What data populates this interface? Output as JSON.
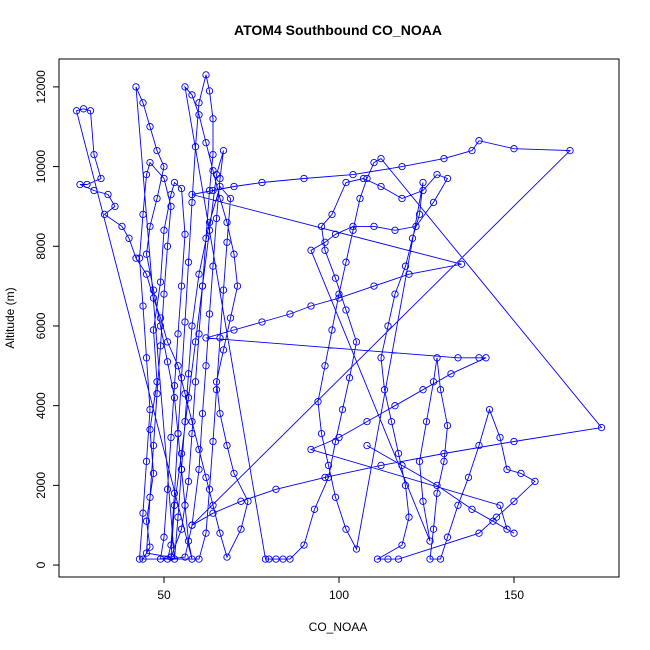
{
  "chart_data": {
    "type": "line",
    "title": "ATOM4 Southbound CO_NOAA",
    "xlabel": "CO_NOAA",
    "ylabel": "Altitude (m)",
    "xlim": [
      20,
      180
    ],
    "ylim": [
      -300,
      12700
    ],
    "x_ticks": [
      50,
      100,
      150
    ],
    "y_ticks": [
      0,
      2000,
      4000,
      6000,
      8000,
      10000,
      12000
    ],
    "marker": "open-circle",
    "line_color": "#0000ff",
    "grid": false,
    "series": [
      {
        "name": "",
        "points": [
          [
            44,
            150
          ],
          [
            46,
            450
          ],
          [
            45,
            1100
          ],
          [
            47,
            2300
          ],
          [
            46,
            3400
          ],
          [
            48,
            4600
          ],
          [
            47,
            5900
          ],
          [
            49,
            7100
          ],
          [
            50,
            8400
          ],
          [
            52,
            9300
          ],
          [
            53,
            9600
          ],
          [
            55,
            9450
          ],
          [
            56,
            8300
          ],
          [
            55,
            7000
          ],
          [
            54,
            5800
          ],
          [
            53,
            4500
          ],
          [
            52,
            3200
          ],
          [
            51,
            1900
          ],
          [
            50,
            700
          ],
          [
            49,
            150
          ],
          [
            52,
            200
          ],
          [
            55,
            900
          ],
          [
            57,
            2100
          ],
          [
            58,
            3300
          ],
          [
            59,
            4600
          ],
          [
            60,
            5800
          ],
          [
            61,
            7000
          ],
          [
            62,
            8200
          ],
          [
            63,
            9400
          ],
          [
            64,
            10300
          ],
          [
            64,
            11200
          ],
          [
            63,
            11900
          ],
          [
            62,
            12300
          ],
          [
            60,
            11600
          ],
          [
            59,
            10500
          ],
          [
            58,
            9100
          ],
          [
            57,
            7600
          ],
          [
            56,
            6100
          ],
          [
            55,
            4700
          ],
          [
            54,
            3300
          ],
          [
            53,
            1800
          ],
          [
            52,
            500
          ],
          [
            51,
            150
          ],
          [
            56,
            200
          ],
          [
            58,
            1000
          ],
          [
            60,
            2400
          ],
          [
            61,
            3800
          ],
          [
            62,
            5000
          ],
          [
            63,
            6300
          ],
          [
            64,
            7500
          ],
          [
            65,
            8700
          ],
          [
            66,
            9700
          ],
          [
            67,
            10400
          ],
          [
            65,
            9800
          ],
          [
            63,
            8400
          ],
          [
            61,
            7000
          ],
          [
            59,
            5600
          ],
          [
            57,
            4200
          ],
          [
            55,
            2800
          ],
          [
            53,
            1500
          ],
          [
            52,
            200
          ],
          [
            45,
            300
          ],
          [
            46,
            1700
          ],
          [
            47,
            3000
          ],
          [
            48,
            4300
          ],
          [
            49,
            5500
          ],
          [
            50,
            6800
          ],
          [
            51,
            8000
          ],
          [
            52,
            9000
          ],
          [
            50,
            9700
          ],
          [
            46,
            10100
          ],
          [
            45,
            9800
          ],
          [
            44,
            8800
          ],
          [
            43,
            7700
          ],
          [
            44,
            6500
          ],
          [
            45,
            5200
          ],
          [
            46,
            3900
          ],
          [
            45,
            2600
          ],
          [
            44,
            1300
          ],
          [
            43,
            150
          ],
          [
            60,
            150
          ],
          [
            62,
            800
          ],
          [
            63,
            1900
          ],
          [
            64,
            3100
          ],
          [
            65,
            4400
          ],
          [
            66,
            5700
          ],
          [
            67,
            6900
          ],
          [
            68,
            8100
          ],
          [
            69,
            9200
          ],
          [
            66,
            9500
          ],
          [
            63,
            8600
          ],
          [
            60,
            7300
          ],
          [
            58,
            6000
          ],
          [
            57,
            4800
          ],
          [
            56,
            3600
          ],
          [
            55,
            2400
          ],
          [
            54,
            1200
          ],
          [
            53,
            150
          ],
          [
            42,
            12000
          ],
          [
            44,
            11600
          ],
          [
            46,
            11000
          ],
          [
            48,
            10400
          ],
          [
            50,
            10000
          ],
          [
            48,
            9200
          ],
          [
            46,
            8500
          ],
          [
            45,
            7800
          ],
          [
            47,
            6900
          ],
          [
            49,
            6000
          ],
          [
            51,
            5100
          ],
          [
            53,
            4200
          ],
          [
            54,
            3300
          ],
          [
            55,
            2400
          ],
          [
            56,
            1500
          ],
          [
            57,
            600
          ],
          [
            58,
            150
          ],
          [
            25,
            11400
          ],
          [
            27,
            11450
          ],
          [
            29,
            11400
          ],
          [
            30,
            10300
          ],
          [
            32,
            9700
          ],
          [
            28,
            9550
          ],
          [
            26,
            9550
          ],
          [
            30,
            9400
          ],
          [
            34,
            9300
          ],
          [
            36,
            9000
          ],
          [
            33,
            8800
          ],
          [
            38,
            8500
          ],
          [
            40,
            8200
          ],
          [
            42,
            7700
          ],
          [
            45,
            7300
          ],
          [
            47,
            6700
          ],
          [
            49,
            6200
          ],
          [
            51,
            5600
          ],
          [
            54,
            5000
          ],
          [
            56,
            4300
          ],
          [
            58,
            3600
          ],
          [
            60,
            2900
          ],
          [
            62,
            2200
          ],
          [
            64,
            1500
          ],
          [
            66,
            800
          ],
          [
            68,
            200
          ],
          [
            72,
            900
          ],
          [
            74,
            1600
          ],
          [
            70,
            2300
          ],
          [
            68,
            3000
          ],
          [
            66,
            3800
          ],
          [
            65,
            4600
          ],
          [
            67,
            5400
          ],
          [
            69,
            6200
          ],
          [
            71,
            7000
          ],
          [
            70,
            7800
          ],
          [
            68,
            8600
          ],
          [
            66,
            9200
          ],
          [
            64,
            9900
          ],
          [
            62,
            10600
          ],
          [
            60,
            11300
          ],
          [
            58,
            11800
          ],
          [
            56,
            12000
          ],
          [
            79,
            150
          ],
          [
            80,
            150
          ],
          [
            82,
            150
          ],
          [
            84,
            150
          ],
          [
            86,
            150
          ],
          [
            90,
            500
          ],
          [
            93,
            1400
          ],
          [
            97,
            2200
          ],
          [
            99,
            3100
          ],
          [
            101,
            3900
          ],
          [
            103,
            4700
          ],
          [
            105,
            5600
          ],
          [
            102,
            6400
          ],
          [
            99,
            7200
          ],
          [
            96,
            7900
          ],
          [
            95,
            8500
          ],
          [
            98,
            8800
          ],
          [
            102,
            9600
          ],
          [
            107,
            9700
          ],
          [
            112,
            9500
          ],
          [
            118,
            9200
          ],
          [
            124,
            9400
          ],
          [
            128,
            9800
          ],
          [
            131,
            9700
          ],
          [
            127,
            9100
          ],
          [
            122,
            8500
          ],
          [
            116,
            8400
          ],
          [
            110,
            8500
          ],
          [
            104,
            8500
          ],
          [
            99,
            8300
          ],
          [
            96,
            8100
          ],
          [
            92,
            7900
          ],
          [
            126,
            600
          ],
          [
            124,
            1600
          ],
          [
            123,
            2600
          ],
          [
            125,
            3600
          ],
          [
            127,
            4600
          ],
          [
            128,
            5200
          ],
          [
            129,
            4400
          ],
          [
            131,
            3500
          ],
          [
            130,
            2600
          ],
          [
            128,
            1800
          ],
          [
            127,
            900
          ],
          [
            126,
            150
          ],
          [
            129,
            150
          ],
          [
            131,
            700
          ],
          [
            134,
            1500
          ],
          [
            137,
            2200
          ],
          [
            140,
            3000
          ],
          [
            143,
            3900
          ],
          [
            146,
            3200
          ],
          [
            148,
            2400
          ],
          [
            152,
            2300
          ],
          [
            156,
            2100
          ],
          [
            150,
            1600
          ],
          [
            145,
            1200
          ],
          [
            140,
            800
          ],
          [
            117,
            150
          ],
          [
            114,
            150
          ],
          [
            111,
            150
          ],
          [
            118,
            500
          ],
          [
            120,
            1200
          ],
          [
            119,
            2000
          ],
          [
            117,
            2800
          ],
          [
            115,
            3600
          ],
          [
            113,
            4400
          ],
          [
            112,
            5200
          ],
          [
            114,
            6000
          ],
          [
            116,
            6800
          ],
          [
            119,
            7500
          ],
          [
            121,
            8200
          ],
          [
            123,
            8800
          ],
          [
            124,
            9600
          ],
          [
            105,
            400
          ],
          [
            102,
            900
          ],
          [
            99,
            1700
          ],
          [
            97,
            2500
          ],
          [
            95,
            3300
          ],
          [
            94,
            4100
          ],
          [
            96,
            5000
          ],
          [
            98,
            5900
          ],
          [
            100,
            6800
          ],
          [
            102,
            7600
          ],
          [
            104,
            8400
          ],
          [
            106,
            9200
          ],
          [
            108,
            9700
          ],
          [
            110,
            10100
          ],
          [
            112,
            10200
          ],
          [
            175,
            3450
          ],
          [
            150,
            3100
          ],
          [
            130,
            2800
          ],
          [
            112,
            2500
          ],
          [
            96,
            2200
          ],
          [
            82,
            1900
          ],
          [
            72,
            1600
          ],
          [
            64,
            1300
          ],
          [
            58,
            1000
          ],
          [
            166,
            10400
          ],
          [
            150,
            10450
          ],
          [
            140,
            10650
          ],
          [
            138,
            10400
          ],
          [
            130,
            10200
          ],
          [
            118,
            10000
          ],
          [
            104,
            9800
          ],
          [
            90,
            9700
          ],
          [
            78,
            9600
          ],
          [
            70,
            9500
          ],
          [
            64,
            9400
          ],
          [
            58,
            9300
          ],
          [
            135,
            7550
          ],
          [
            120,
            7300
          ],
          [
            110,
            7000
          ],
          [
            100,
            6700
          ],
          [
            92,
            6500
          ],
          [
            86,
            6300
          ],
          [
            78,
            6100
          ],
          [
            70,
            5900
          ],
          [
            62,
            5700
          ],
          [
            134,
            5200
          ],
          [
            140,
            5200
          ],
          [
            142,
            5200
          ],
          [
            132,
            4800
          ],
          [
            124,
            4400
          ],
          [
            116,
            4000
          ],
          [
            108,
            3600
          ],
          [
            100,
            3200
          ],
          [
            92,
            2900
          ],
          [
            146,
            1500
          ],
          [
            148,
            900
          ],
          [
            150,
            800
          ],
          [
            144,
            1100
          ],
          [
            138,
            1400
          ],
          [
            128,
            2000
          ],
          [
            118,
            2500
          ],
          [
            108,
            3000
          ]
        ]
      }
    ]
  }
}
